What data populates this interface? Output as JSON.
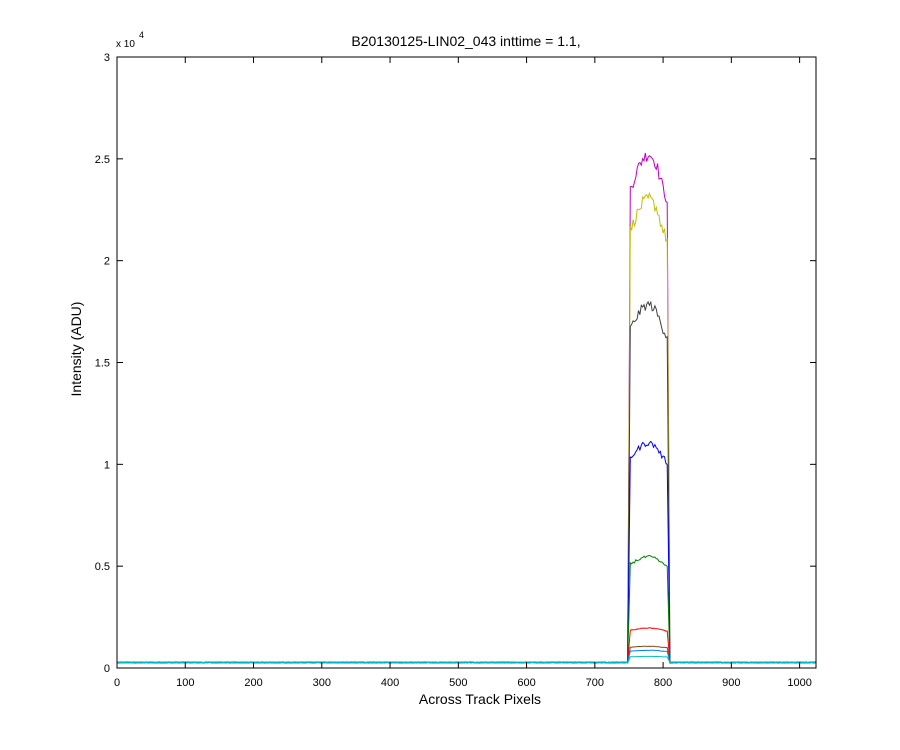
{
  "chart_data": {
    "type": "line",
    "title": "B20130125-LIN02_043 inttime = 1.1,",
    "xlabel": "Across Track Pixels",
    "ylabel": "Intensity (ADU)",
    "y_exponent_label": "x 10",
    "y_exponent": "4",
    "xlim": [
      0,
      1024
    ],
    "ylim": [
      0,
      3
    ],
    "x_ticks": [
      0,
      100,
      200,
      300,
      400,
      500,
      600,
      700,
      800,
      900,
      1000
    ],
    "x_tick_labels": [
      "0",
      "100",
      "200",
      "300",
      "400",
      "500",
      "600",
      "700",
      "800",
      "900",
      "1000"
    ],
    "y_ticks": [
      0,
      0.5,
      1,
      1.5,
      2,
      2.5,
      3
    ],
    "y_tick_labels": [
      "0",
      "0.5",
      "1",
      "1.5",
      "2",
      "2.5",
      "3"
    ],
    "grid": false,
    "box": true,
    "profile_shape": {
      "x": [
        0,
        748,
        752,
        760,
        770,
        780,
        790,
        800,
        806,
        810,
        1024
      ],
      "relative": [
        0,
        0,
        0.93,
        0.96,
        0.99,
        1.0,
        0.98,
        0.93,
        0.91,
        0,
        0
      ],
      "note_units": "y = baseline + peak * relative"
    },
    "baseline": 0.027,
    "series": [
      {
        "color": "#bf00bf",
        "peak": 2.5
      },
      {
        "color": "#bfbf00",
        "peak": 2.28
      },
      {
        "color": "#404040",
        "peak": 1.76
      },
      {
        "color": "#0000ff",
        "peak": 1.08
      },
      {
        "color": "#008000",
        "peak": 0.52
      },
      {
        "color": "#ff0000",
        "peak": 0.17
      },
      {
        "color": "#8b4513",
        "peak": 0.08
      },
      {
        "color": "#0080ff",
        "peak": 0.06
      },
      {
        "color": "#00bfbf",
        "peak": 0.03
      }
    ]
  }
}
